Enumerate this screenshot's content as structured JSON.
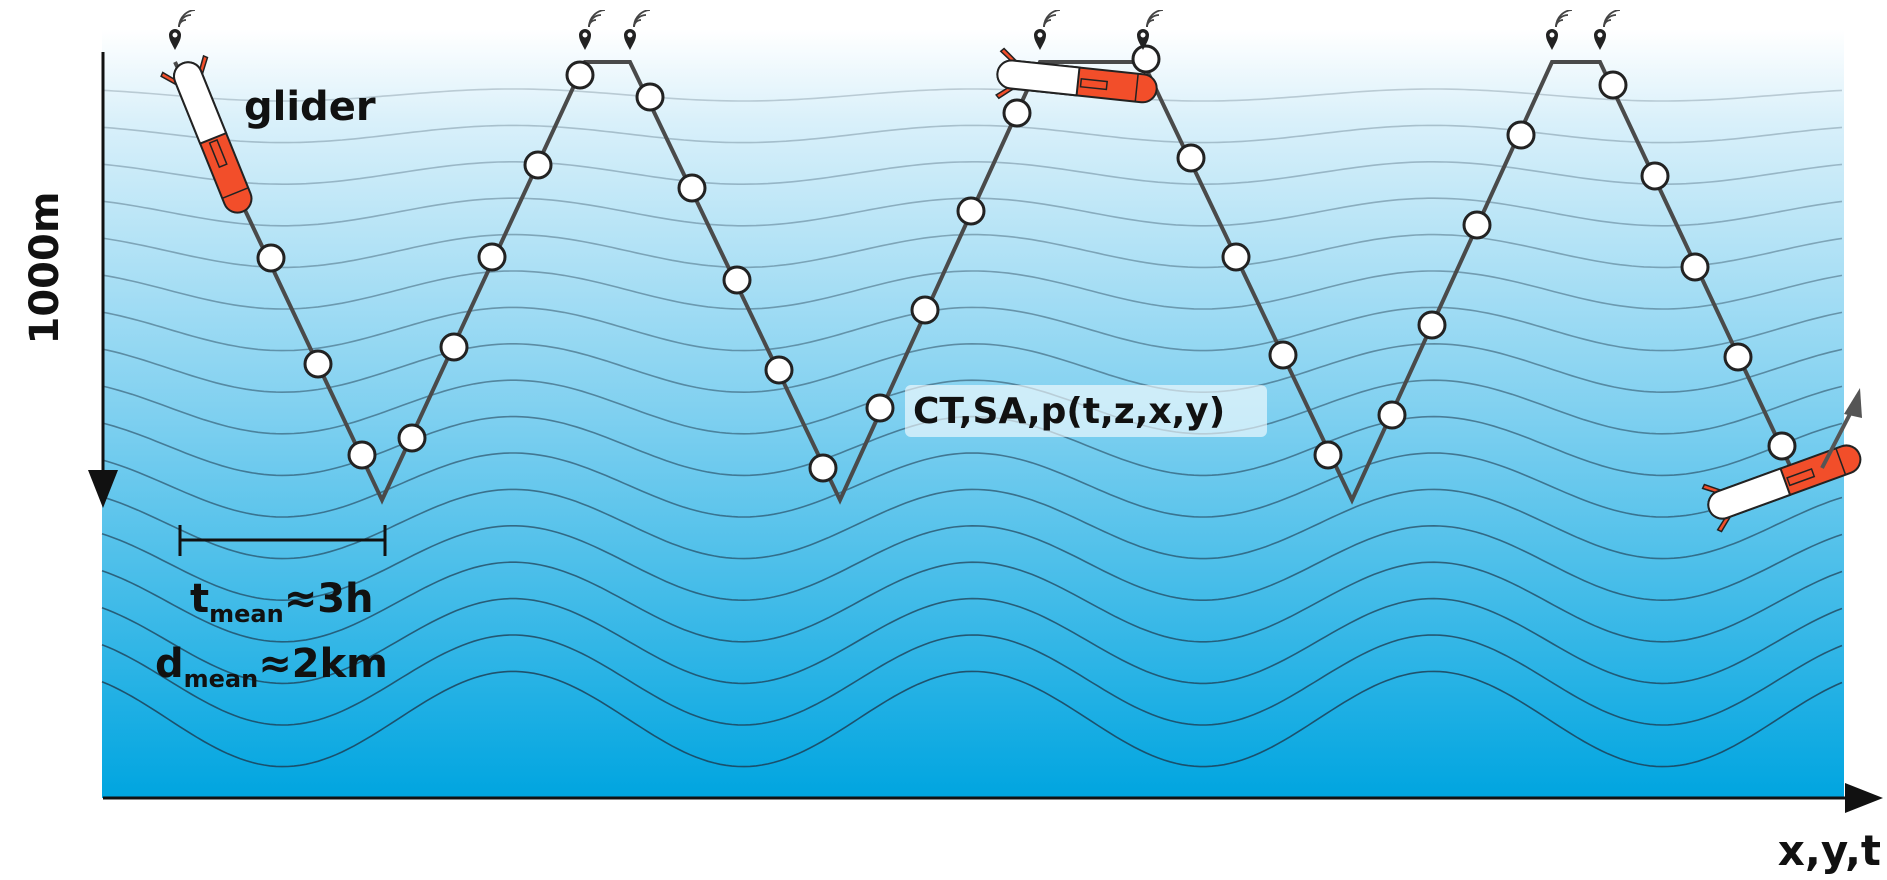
{
  "labels": {
    "glider": "glider",
    "measurements": "CT,SA,p(t,z,x,y)",
    "depth_axis": "1000m",
    "horizontal_axis": "x,y,t",
    "t_mean_main": "t",
    "t_mean_sub": "mean",
    "t_mean_value": "≈3h",
    "d_mean_main": "d",
    "d_mean_sub": "mean",
    "d_mean_value": "≈2km"
  },
  "colors": {
    "ocean_top": "#ffffff",
    "ocean_bottom": "#00a5e0",
    "glider_body": "#f24e2a",
    "glider_nose": "#ffffff",
    "track": "#4a4a4a",
    "axis": "#111111"
  },
  "icons": {
    "surface_marker": "location-pin-with-signal-icon",
    "glider": "underwater-glider-icon"
  }
}
